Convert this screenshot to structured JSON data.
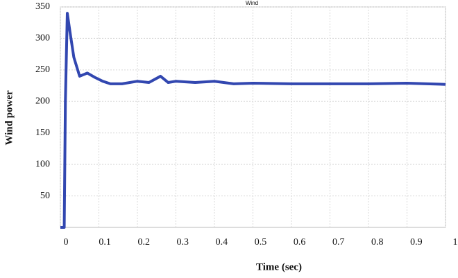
{
  "chart_data": {
    "type": "line",
    "title": "Wind",
    "x_label": "Time (sec)",
    "y_label": "Wind power",
    "xlim": [
      0,
      1
    ],
    "ylim": [
      0,
      350
    ],
    "xticks": [
      0,
      0.1,
      0.2,
      0.3,
      0.4,
      0.5,
      0.6,
      0.7,
      0.8,
      0.9,
      1
    ],
    "yticks": [
      50,
      100,
      150,
      200,
      250,
      300,
      350
    ],
    "grid": true,
    "x": [
      0,
      0.01,
      0.013,
      0.018,
      0.025,
      0.035,
      0.05,
      0.07,
      0.09,
      0.11,
      0.13,
      0.16,
      0.2,
      0.23,
      0.26,
      0.28,
      0.3,
      0.35,
      0.4,
      0.45,
      0.5,
      0.6,
      0.7,
      0.8,
      0.9,
      1
    ],
    "series": [
      {
        "name": "Wind power",
        "color": "#3247b0",
        "values": [
          0,
          0,
          200,
          340,
          310,
          270,
          240,
          245,
          238,
          232,
          228,
          228,
          232,
          230,
          240,
          230,
          232,
          230,
          232,
          228,
          229,
          228,
          228,
          228,
          229,
          227
        ]
      }
    ]
  }
}
